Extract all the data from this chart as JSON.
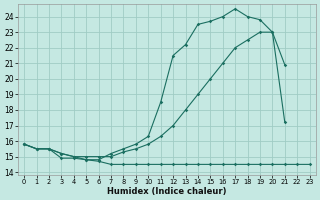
{
  "xlabel": "Humidex (Indice chaleur)",
  "xlim": [
    -0.5,
    23.5
  ],
  "ylim": [
    13.8,
    24.8
  ],
  "yticks": [
    14,
    15,
    16,
    17,
    18,
    19,
    20,
    21,
    22,
    23,
    24
  ],
  "xticks": [
    0,
    1,
    2,
    3,
    4,
    5,
    6,
    7,
    8,
    9,
    10,
    11,
    12,
    13,
    14,
    15,
    16,
    17,
    18,
    19,
    20,
    21,
    22,
    23
  ],
  "bg_color": "#c5e8e2",
  "grid_color": "#a0ccc5",
  "line_color": "#1a6e60",
  "line1_x": [
    0,
    1,
    2,
    3,
    4,
    5,
    6,
    7,
    8,
    9,
    10,
    11,
    12,
    13,
    14,
    15,
    16,
    17,
    18,
    19,
    20,
    21,
    22,
    23
  ],
  "line1_y": [
    15.8,
    15.5,
    15.5,
    14.9,
    14.9,
    14.8,
    14.7,
    14.5,
    14.5,
    14.5,
    14.5,
    14.5,
    14.5,
    14.5,
    14.5,
    14.5,
    14.5,
    14.5,
    14.5,
    14.5,
    14.5,
    14.5,
    14.5,
    14.5
  ],
  "line2_x": [
    0,
    1,
    2,
    3,
    4,
    5,
    6,
    7,
    8,
    9,
    10,
    11,
    12,
    13,
    14,
    15,
    16,
    17,
    18,
    19,
    20,
    21,
    22,
    23
  ],
  "line2_y": [
    15.8,
    15.5,
    15.5,
    15.2,
    15.0,
    15.0,
    15.0,
    15.0,
    15.3,
    15.5,
    15.8,
    16.3,
    17.0,
    18.0,
    19.0,
    20.0,
    21.0,
    22.0,
    22.5,
    23.0,
    23.0,
    20.9,
    null,
    null
  ],
  "line3_x": [
    0,
    1,
    2,
    3,
    4,
    5,
    6,
    7,
    8,
    9,
    10,
    11,
    12,
    13,
    14,
    15,
    16,
    17,
    18,
    19,
    20,
    21
  ],
  "line3_y": [
    15.8,
    15.5,
    15.5,
    15.2,
    15.0,
    14.8,
    14.8,
    15.2,
    15.5,
    15.8,
    16.3,
    18.5,
    21.5,
    22.2,
    23.5,
    23.7,
    24.0,
    24.5,
    24.0,
    23.8,
    23.0,
    17.2
  ]
}
